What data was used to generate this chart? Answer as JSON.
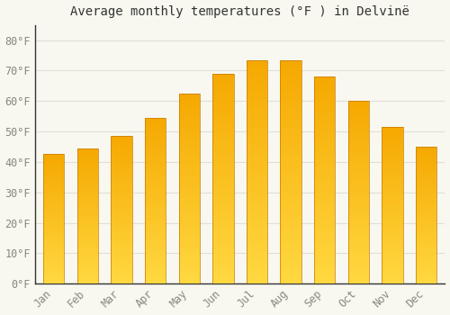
{
  "title": "Average monthly temperatures (°F ) in Delvinë",
  "months": [
    "Jan",
    "Feb",
    "Mar",
    "Apr",
    "May",
    "Jun",
    "Jul",
    "Aug",
    "Sep",
    "Oct",
    "Nov",
    "Dec"
  ],
  "values": [
    42.5,
    44.5,
    48.5,
    54.5,
    62.5,
    69.0,
    73.5,
    73.5,
    68.0,
    60.0,
    51.5,
    45.0
  ],
  "bar_color_top": "#F5A800",
  "bar_color_mid": "#FFBB00",
  "bar_color_bottom": "#FFD840",
  "bar_edge_color": "#C87800",
  "background_color": "#F8F8F0",
  "grid_color": "#E0E0D8",
  "yticks": [
    0,
    10,
    20,
    30,
    40,
    50,
    60,
    70,
    80
  ],
  "ylim": [
    0,
    85
  ],
  "title_fontsize": 10,
  "tick_fontsize": 8.5
}
